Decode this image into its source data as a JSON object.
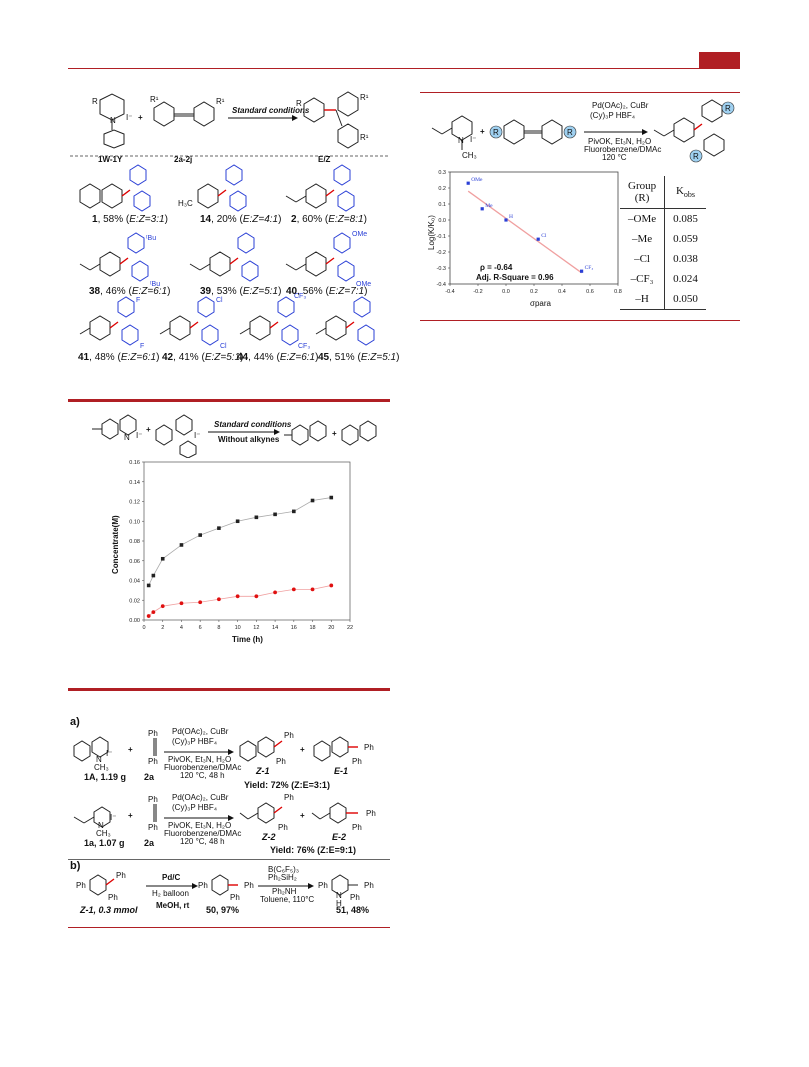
{
  "scheme1": {
    "reactant1": "1W-1Y",
    "reactant2": "2a-2j",
    "product": "E/Z",
    "arrow_label": "Standard conditions",
    "plus": "+",
    "products": [
      {
        "id": "1",
        "yield": "58%",
        "ratio": "E:Z=3:1"
      },
      {
        "id": "14",
        "yield": "20%",
        "ratio": "E:Z=4:1"
      },
      {
        "id": "2",
        "yield": "60%",
        "ratio": "E:Z=8:1"
      },
      {
        "id": "38",
        "yield": "46%",
        "ratio": "E:Z=6:1"
      },
      {
        "id": "39",
        "yield": "53%",
        "ratio": "E:Z=5:1"
      },
      {
        "id": "40",
        "yield": "56%",
        "ratio": "E:Z=7:1"
      },
      {
        "id": "41",
        "yield": "48%",
        "ratio": "E:Z=6:1"
      },
      {
        "id": "42",
        "yield": "41%",
        "ratio": "E:Z=5:1"
      },
      {
        "id": "44",
        "yield": "44%",
        "ratio": "E:Z=6:1"
      },
      {
        "id": "45",
        "yield": "51%",
        "ratio": "E:Z=5:1"
      }
    ],
    "substituents": {
      "tbu": "ᵗBu",
      "ome": "OMe",
      "f": "F",
      "cl": "Cl",
      "cf3": "CF₃",
      "h3c": "H₃C"
    }
  },
  "hammett": {
    "conditions": [
      "Pd(OAc)₂, CuBr",
      "(Cy)₃P HBF₄",
      "PivOK, Et₃N, H₂O",
      "Fluorobenzene/DMAc",
      "120 °C"
    ],
    "chart_data": {
      "type": "scatter",
      "xlabel": "σpara",
      "ylabel": "Log(K/K₀)",
      "xlim": [
        -0.4,
        0.8
      ],
      "ylim": [
        -0.4,
        0.3
      ],
      "xticks": [
        "-0.4",
        "-0.2",
        "0.0",
        "0.2",
        "0.4",
        "0.6",
        "0.8"
      ],
      "yticks": [
        "0.3",
        "0.2",
        "0.1",
        "0.0",
        "-0.1",
        "-0.2",
        "-0.3",
        "-0.4"
      ],
      "points": [
        {
          "label": "OMe",
          "x": -0.27,
          "y": 0.23
        },
        {
          "label": "Me",
          "x": -0.17,
          "y": 0.07
        },
        {
          "label": "H",
          "x": 0.0,
          "y": 0.0
        },
        {
          "label": "Cl",
          "x": 0.23,
          "y": -0.12
        },
        {
          "label": "CF3",
          "x": 0.54,
          "y": -0.32
        }
      ],
      "fit": {
        "x": [
          -0.27,
          0.54
        ],
        "y": [
          0.18,
          -0.33
        ]
      },
      "annotations": [
        "ρ = -0.64",
        "Adj. R-Square = 0.96"
      ]
    },
    "table": {
      "head1": "Group",
      "head1b": "(R)",
      "head2": "K",
      "head2sub": "obs",
      "rows": [
        {
          "group": "–OMe",
          "k": "0.085"
        },
        {
          "group": "–Me",
          "k": "0.059"
        },
        {
          "group": "–Cl",
          "k": "0.038"
        },
        {
          "group": "–CF₃",
          "k": "0.024"
        },
        {
          "group": "–H",
          "k": "0.050"
        }
      ]
    }
  },
  "kinetics": {
    "arrow_top": "Standard conditions",
    "arrow_bottom": "Without alkynes",
    "chart_data": {
      "type": "line",
      "xlabel": "Time (h)",
      "ylabel": "Concentrate(M)",
      "xlim": [
        0,
        22
      ],
      "ylim": [
        0,
        0.16
      ],
      "xticks": [
        "0",
        "2",
        "4",
        "6",
        "8",
        "10",
        "12",
        "14",
        "16",
        "18",
        "20",
        "22"
      ],
      "yticks": [
        "0.16",
        "0.14",
        "0.12",
        "0.10",
        "0.08",
        "0.06",
        "0.04",
        "0.02",
        "0.00"
      ],
      "series": [
        {
          "color": "#222222",
          "x": [
            0.5,
            1,
            2,
            4,
            6,
            8,
            10,
            12,
            14,
            16,
            18,
            20
          ],
          "y": [
            0.035,
            0.045,
            0.062,
            0.076,
            0.086,
            0.093,
            0.1,
            0.104,
            0.107,
            0.11,
            0.121,
            0.124
          ]
        },
        {
          "color": "#e01010",
          "x": [
            0.5,
            1,
            2,
            4,
            6,
            8,
            10,
            12,
            14,
            16,
            18,
            20
          ],
          "y": [
            0.004,
            0.008,
            0.014,
            0.017,
            0.018,
            0.021,
            0.024,
            0.024,
            0.028,
            0.031,
            0.031,
            0.035
          ]
        }
      ]
    }
  },
  "scheme3": {
    "part_a": "a)",
    "part_b": "b)",
    "row1": {
      "reactant": "1A, 1.19 g",
      "alkyne": "2a",
      "yield": "Yield: 72% (Z:E=3:1)",
      "p1": "Z-1",
      "p2": "E-1"
    },
    "row2": {
      "reactant": "1a, 1.07 g",
      "alkyne": "2a",
      "yield": "Yield: 76% (Z:E=9:1)",
      "p1": "Z-2",
      "p2": "E-2"
    },
    "conditions": [
      "Pd(OAc)₂, CuBr",
      "(Cy)₃P HBF₄",
      "PivOK, Et₃N, H₂O",
      "Fluorobenzene/DMAc",
      "120 °C, 48 h"
    ],
    "b_start": "Z-1, 0.3 mmol",
    "b_cond1": [
      "Pd/C",
      "H₂ balloon",
      "MeOH, rt"
    ],
    "b_mid": "50, 97%",
    "b_cond2": [
      "B(C₆F₅)₃",
      "Ph₂SiH₂",
      "Ph₂NH",
      "Toluene, 110°C"
    ],
    "b_end": "51, 48%",
    "ph": "Ph",
    "nh": "N",
    "hh": "H",
    "ch3": "CH₃",
    "iminus": "I⁻"
  }
}
